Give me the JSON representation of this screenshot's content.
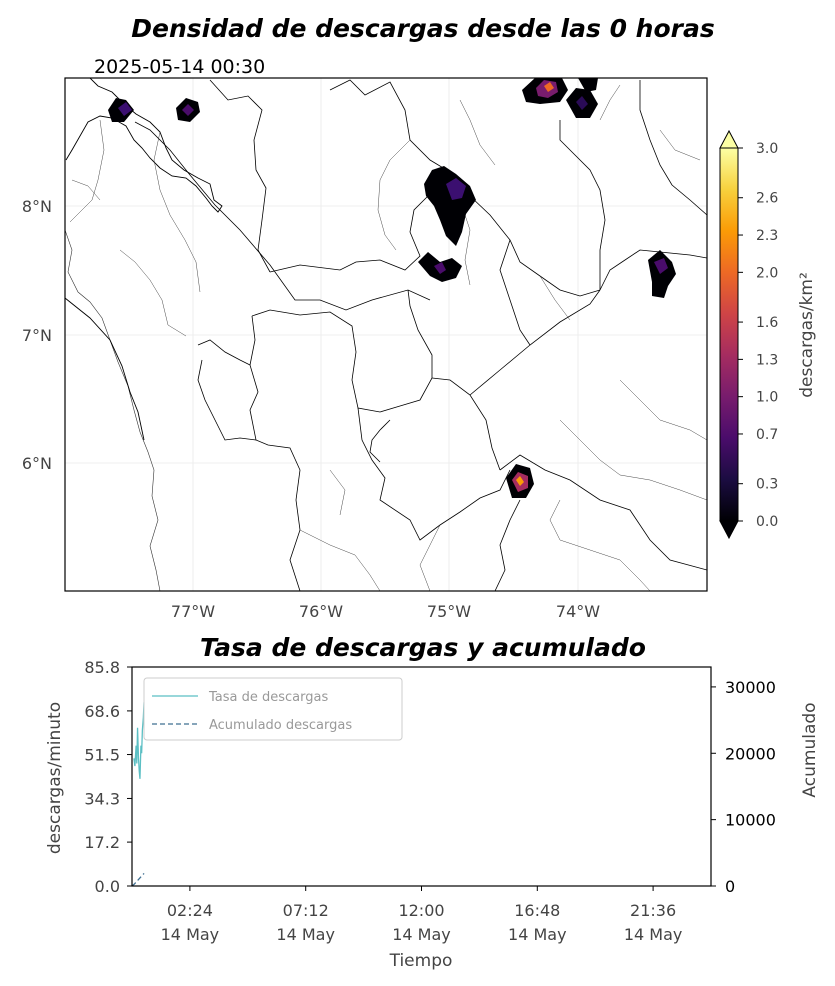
{
  "map": {
    "title": "Densidad de descargas desde las 0 horas",
    "timestamp": "2025-05-14 00:30",
    "lon_ticks": [
      "77°W",
      "76°W",
      "75°W",
      "74°W"
    ],
    "lat_ticks": [
      "8°N",
      "7°N",
      "6°N"
    ],
    "colorbar": {
      "label": "descargas/km²",
      "ticks": [
        "0.0",
        "0.3",
        "0.7",
        "1.0",
        "1.3",
        "1.6",
        "2.0",
        "2.3",
        "2.6",
        "3.0"
      ],
      "colormap": [
        "#000004",
        "#1b0c41",
        "#4a0c6b",
        "#781c6d",
        "#a52c60",
        "#cf4446",
        "#ed6925",
        "#fb9b06",
        "#f7d13d",
        "#fcffa4"
      ]
    }
  },
  "chart_data": {
    "type": "line",
    "title": "Tasa de descargas y acumulado",
    "xlabel": "Tiempo",
    "ylabel": "descargas/minuto",
    "y2label": "Acumulado",
    "x_ticks": [
      {
        "time": "02:24",
        "date": "14 May"
      },
      {
        "time": "07:12",
        "date": "14 May"
      },
      {
        "time": "12:00",
        "date": "14 May"
      },
      {
        "time": "16:48",
        "date": "14 May"
      },
      {
        "time": "21:36",
        "date": "14 May"
      }
    ],
    "y_ticks": [
      "0.0",
      "17.2",
      "34.3",
      "51.5",
      "68.6",
      "85.8"
    ],
    "y2_ticks": [
      "0",
      "10000",
      "20000",
      "30000"
    ],
    "ylim": [
      0,
      85.8
    ],
    "y2lim": [
      0,
      33000
    ],
    "xlim_hours": [
      0,
      24
    ],
    "legend": {
      "placement": "top-left",
      "entries": [
        "Tasa de descargas",
        "Acumulado descargas"
      ]
    },
    "series": [
      {
        "name": "Tasa de descargas",
        "axis": "left",
        "color": "#5bbfc4",
        "style": "solid",
        "x_hours": [
          0.08,
          0.12,
          0.17,
          0.2,
          0.23,
          0.27,
          0.3,
          0.33,
          0.37,
          0.4,
          0.43,
          0.47,
          0.5
        ],
        "values": [
          50,
          47,
          55,
          48,
          62,
          50,
          45,
          42,
          55,
          52,
          61,
          66,
          72
        ]
      },
      {
        "name": "Acumulado descargas",
        "axis": "right",
        "color": "#3f6f91",
        "style": "dashed",
        "x_hours": [
          0.0,
          0.1,
          0.2,
          0.3,
          0.4,
          0.5
        ],
        "values": [
          0,
          300,
          700,
          1100,
          1500,
          1900
        ]
      }
    ]
  }
}
